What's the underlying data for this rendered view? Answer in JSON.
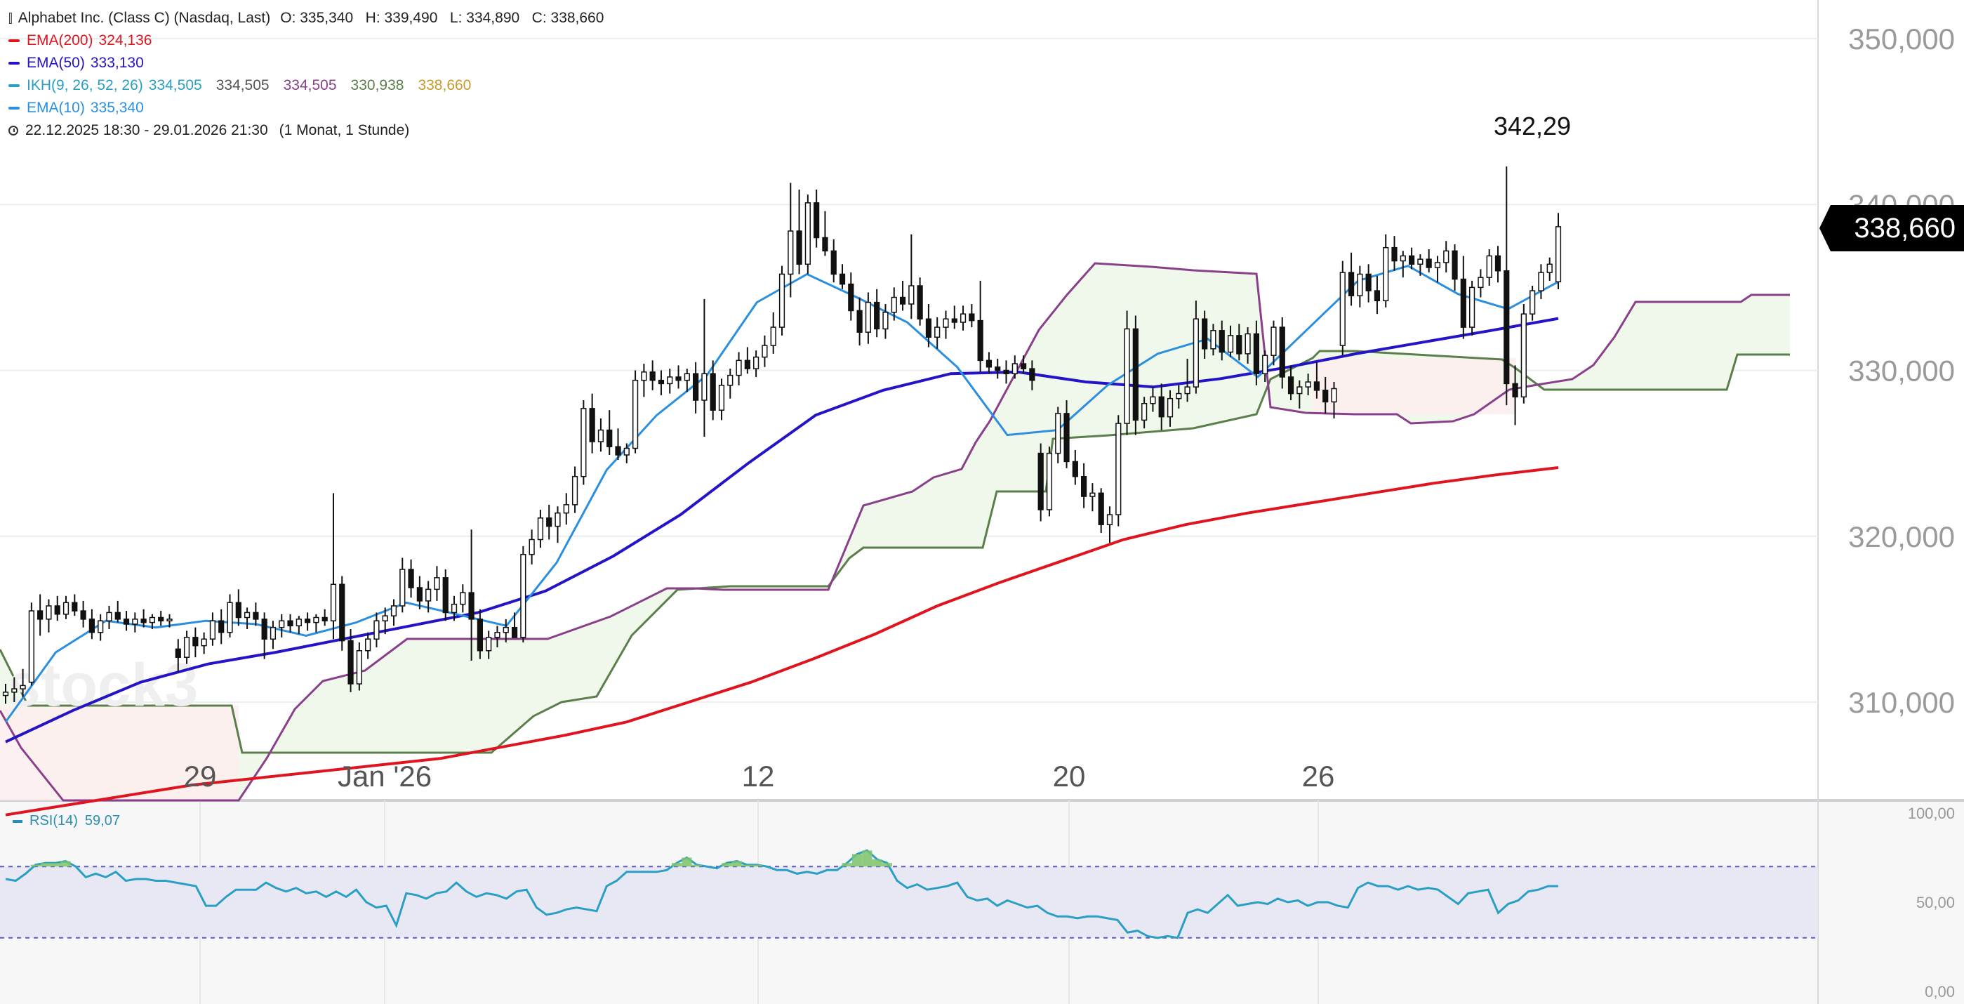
{
  "header": {
    "instrument": "Alphabet Inc. (Class C) (Nasdaq, Last)",
    "ohlc": "O: 335,340   H: 339,490   L: 334,890   C: 338,660",
    "ema200": {
      "label": "EMA(200)",
      "value": "324,136",
      "color": "#e0141e"
    },
    "ema50": {
      "label": "EMA(50)",
      "value": "333,130",
      "color": "#2414c8"
    },
    "ikh": {
      "label": "IKH(9, 26, 52, 26)",
      "v1": "334,505",
      "v2": "334,505",
      "v3": "334,505",
      "v4": "330,938",
      "v5": "338,660",
      "colors": [
        "#2a9fc4",
        "#555555",
        "#8a3f8a",
        "#5a7f4a",
        "#c89a2a"
      ]
    },
    "ema10": {
      "label": "EMA(10)",
      "value": "335,340",
      "color": "#2b8fe0"
    },
    "period": "22.12.2025 18:30 - 29.01.2026 21:30",
    "interval": "(1 Monat, 1 Stunde)"
  },
  "price_axis": {
    "ticks": [
      "350,000",
      "340,000",
      "330,000",
      "320,000",
      "310,000"
    ],
    "last_price": "338,660"
  },
  "date_axis": {
    "ticks": [
      "29",
      "Jan '26",
      "12",
      "20",
      "26"
    ]
  },
  "high_annotation": "342,29",
  "watermark": "stock3",
  "rsi": {
    "label": "RSI(14)",
    "value": "59,07",
    "ticks": [
      "100,00",
      "50,00",
      "0,00"
    ],
    "upper": 70,
    "lower": 30
  },
  "chart_data": {
    "type": "candlestick",
    "title": "Alphabet Inc. (Class C) (Nasdaq, Last)",
    "timeframe": "1 Stunde",
    "ylim": [
      303,
      352
    ],
    "last": 338.66,
    "high_marker": 342.29,
    "candles": [
      [
        310.4,
        311.1,
        309.9,
        310.6
      ],
      [
        310.6,
        311.5,
        310.0,
        310.8
      ],
      [
        310.8,
        312.0,
        310.3,
        311.0
      ],
      [
        311.2,
        316.0,
        311.0,
        315.5
      ],
      [
        315.5,
        316.5,
        314.0,
        315.0
      ],
      [
        315.0,
        316.2,
        314.2,
        315.8
      ],
      [
        315.8,
        316.4,
        314.9,
        315.3
      ],
      [
        315.3,
        316.4,
        315.0,
        316.0
      ],
      [
        316.0,
        316.5,
        315.2,
        315.5
      ],
      [
        315.5,
        316.1,
        314.5,
        315.0
      ],
      [
        315.0,
        315.6,
        313.8,
        314.2
      ],
      [
        314.2,
        315.3,
        313.7,
        314.9
      ],
      [
        314.9,
        315.8,
        314.4,
        315.4
      ],
      [
        315.4,
        316.1,
        314.8,
        315.0
      ],
      [
        315.0,
        315.5,
        314.3,
        314.7
      ],
      [
        314.7,
        315.4,
        314.2,
        315.0
      ],
      [
        315.0,
        315.6,
        314.5,
        314.8
      ],
      [
        314.8,
        315.3,
        314.4,
        315.1
      ],
      [
        315.1,
        315.5,
        314.6,
        314.9
      ],
      [
        314.9,
        315.3,
        314.5,
        315.0
      ],
      [
        313.2,
        313.8,
        311.8,
        312.7
      ],
      [
        312.7,
        314.3,
        312.3,
        313.9
      ],
      [
        313.9,
        314.5,
        312.7,
        313.4
      ],
      [
        313.4,
        314.2,
        312.9,
        313.8
      ],
      [
        313.8,
        315.4,
        313.4,
        314.9
      ],
      [
        314.9,
        315.6,
        313.5,
        314.2
      ],
      [
        314.2,
        316.5,
        313.9,
        316.0
      ],
      [
        316.0,
        316.8,
        314.6,
        315.1
      ],
      [
        315.1,
        315.7,
        314.4,
        315.4
      ],
      [
        315.4,
        316.0,
        314.6,
        315.0
      ],
      [
        315.0,
        315.4,
        312.6,
        313.8
      ],
      [
        313.8,
        314.9,
        313.2,
        314.5
      ],
      [
        314.5,
        315.3,
        313.9,
        314.9
      ],
      [
        314.9,
        315.3,
        314.2,
        314.6
      ],
      [
        314.6,
        315.2,
        314.1,
        315.0
      ],
      [
        315.0,
        315.4,
        314.3,
        314.8
      ],
      [
        314.8,
        315.3,
        314.2,
        315.1
      ],
      [
        315.1,
        315.6,
        314.6,
        314.9
      ],
      [
        314.9,
        322.6,
        313.8,
        317.1
      ],
      [
        317.1,
        317.6,
        313.1,
        313.7
      ],
      [
        313.7,
        314.4,
        310.6,
        311.1
      ],
      [
        311.1,
        313.6,
        310.7,
        313.1
      ],
      [
        313.1,
        314.2,
        312.6,
        313.8
      ],
      [
        313.8,
        315.4,
        313.3,
        314.9
      ],
      [
        314.9,
        315.7,
        314.1,
        315.2
      ],
      [
        315.2,
        316.2,
        314.6,
        315.8
      ],
      [
        315.8,
        318.7,
        315.4,
        318.0
      ],
      [
        318.0,
        318.6,
        316.3,
        316.9
      ],
      [
        316.9,
        317.6,
        315.6,
        316.1
      ],
      [
        316.1,
        317.3,
        315.4,
        316.8
      ],
      [
        316.8,
        318.2,
        316.1,
        317.5
      ],
      [
        317.5,
        318.0,
        314.9,
        315.4
      ],
      [
        315.4,
        316.4,
        314.9,
        315.9
      ],
      [
        315.9,
        317.1,
        315.4,
        316.6
      ],
      [
        316.6,
        320.4,
        312.5,
        315.0
      ],
      [
        315.0,
        315.6,
        312.6,
        313.1
      ],
      [
        313.1,
        314.3,
        312.6,
        313.9
      ],
      [
        313.9,
        314.6,
        313.3,
        314.2
      ],
      [
        314.2,
        315.0,
        313.6,
        314.5
      ],
      [
        314.5,
        315.4,
        313.9,
        313.9
      ],
      [
        313.9,
        319.4,
        313.6,
        318.9
      ],
      [
        318.9,
        320.4,
        318.3,
        319.8
      ],
      [
        319.8,
        321.6,
        319.3,
        321.1
      ],
      [
        321.1,
        321.9,
        319.8,
        320.6
      ],
      [
        320.6,
        321.8,
        319.6,
        321.4
      ],
      [
        321.4,
        322.6,
        320.7,
        321.9
      ],
      [
        321.9,
        324.2,
        321.4,
        323.6
      ],
      [
        323.6,
        328.2,
        323.1,
        327.7
      ],
      [
        327.7,
        328.6,
        325.0,
        325.7
      ],
      [
        325.7,
        327.1,
        325.1,
        326.4
      ],
      [
        326.4,
        327.6,
        324.9,
        325.4
      ],
      [
        325.4,
        326.5,
        324.6,
        324.9
      ],
      [
        324.9,
        325.6,
        324.4,
        325.3
      ],
      [
        325.3,
        330.0,
        325.0,
        329.4
      ],
      [
        329.4,
        330.4,
        328.4,
        329.9
      ],
      [
        329.9,
        330.6,
        328.8,
        329.4
      ],
      [
        329.4,
        330.0,
        328.5,
        329.2
      ],
      [
        329.2,
        330.1,
        328.6,
        329.6
      ],
      [
        329.6,
        330.3,
        328.9,
        329.4
      ],
      [
        329.4,
        330.1,
        328.7,
        329.8
      ],
      [
        329.8,
        330.5,
        327.4,
        328.2
      ],
      [
        328.2,
        334.3,
        326.0,
        329.8
      ],
      [
        329.8,
        330.6,
        327.0,
        327.6
      ],
      [
        327.6,
        329.5,
        327.0,
        329.1
      ],
      [
        329.1,
        330.1,
        328.3,
        329.7
      ],
      [
        329.7,
        331.1,
        329.1,
        330.6
      ],
      [
        330.6,
        331.4,
        329.8,
        330.1
      ],
      [
        330.1,
        331.2,
        329.6,
        330.8
      ],
      [
        330.8,
        332.1,
        330.2,
        331.5
      ],
      [
        331.5,
        333.5,
        331.0,
        332.6
      ],
      [
        332.6,
        336.3,
        332.1,
        335.8
      ],
      [
        335.8,
        341.3,
        334.4,
        338.4
      ],
      [
        338.4,
        340.9,
        335.8,
        336.4
      ],
      [
        336.4,
        340.6,
        335.8,
        340.1
      ],
      [
        340.1,
        340.9,
        337.4,
        338.0
      ],
      [
        338.0,
        339.6,
        336.9,
        337.2
      ],
      [
        337.2,
        337.9,
        335.3,
        335.8
      ],
      [
        335.8,
        336.4,
        334.9,
        335.2
      ],
      [
        335.2,
        335.9,
        333.0,
        333.6
      ],
      [
        333.6,
        334.4,
        331.5,
        332.3
      ],
      [
        332.3,
        334.7,
        331.6,
        334.1
      ],
      [
        334.1,
        334.9,
        332.0,
        332.5
      ],
      [
        332.5,
        334.0,
        331.9,
        333.5
      ],
      [
        333.5,
        335.0,
        333.0,
        334.4
      ],
      [
        334.4,
        335.4,
        333.6,
        334.0
      ],
      [
        334.0,
        338.2,
        333.1,
        335.1
      ],
      [
        335.1,
        335.6,
        332.7,
        333.1
      ],
      [
        333.1,
        334.0,
        331.4,
        332.0
      ],
      [
        332.0,
        333.2,
        331.3,
        332.6
      ],
      [
        332.6,
        333.6,
        331.9,
        333.1
      ],
      [
        333.1,
        333.9,
        332.5,
        332.9
      ],
      [
        332.9,
        333.9,
        332.4,
        333.4
      ],
      [
        333.4,
        334.0,
        332.6,
        333.0
      ],
      [
        333.0,
        335.4,
        329.9,
        330.6
      ],
      [
        330.6,
        331.1,
        329.8,
        330.2
      ],
      [
        330.2,
        330.7,
        329.5,
        330.0
      ],
      [
        330.0,
        330.6,
        329.2,
        329.8
      ],
      [
        329.8,
        330.9,
        329.5,
        330.4
      ],
      [
        330.4,
        330.9,
        329.8,
        330.1
      ],
      [
        330.1,
        330.6,
        328.8,
        329.4
      ],
      [
        325.0,
        325.6,
        320.9,
        321.6
      ],
      [
        321.6,
        325.4,
        321.2,
        325.0
      ],
      [
        325.0,
        327.8,
        324.4,
        327.4
      ],
      [
        327.4,
        328.2,
        324.1,
        324.5
      ],
      [
        324.5,
        325.2,
        323.1,
        323.6
      ],
      [
        323.6,
        324.4,
        321.7,
        322.4
      ],
      [
        322.4,
        323.2,
        321.5,
        322.6
      ],
      [
        322.6,
        322.9,
        320.2,
        320.7
      ],
      [
        320.7,
        321.8,
        319.6,
        321.3
      ],
      [
        321.3,
        327.3,
        320.6,
        326.8
      ],
      [
        326.8,
        333.6,
        326.1,
        332.5
      ],
      [
        332.5,
        333.3,
        326.1,
        327.0
      ],
      [
        327.0,
        328.4,
        326.5,
        328.0
      ],
      [
        328.0,
        329.0,
        327.5,
        328.4
      ],
      [
        328.4,
        329.2,
        326.4,
        327.2
      ],
      [
        327.2,
        328.8,
        326.6,
        328.3
      ],
      [
        328.3,
        329.1,
        327.7,
        328.6
      ],
      [
        328.6,
        330.7,
        328.1,
        329.0
      ],
      [
        329.0,
        334.2,
        328.6,
        333.1
      ],
      [
        333.1,
        333.6,
        330.7,
        331.3
      ],
      [
        331.3,
        332.8,
        330.9,
        332.4
      ],
      [
        332.4,
        333.0,
        330.6,
        331.1
      ],
      [
        331.1,
        332.7,
        330.8,
        332.1
      ],
      [
        332.1,
        332.8,
        330.6,
        331.0
      ],
      [
        331.0,
        332.6,
        330.4,
        332.2
      ],
      [
        332.2,
        333.0,
        329.1,
        329.8
      ],
      [
        329.8,
        331.2,
        329.3,
        330.9
      ],
      [
        330.9,
        333.0,
        330.3,
        332.6
      ],
      [
        332.6,
        333.2,
        328.9,
        329.6
      ],
      [
        329.6,
        330.3,
        328.2,
        328.6
      ],
      [
        328.6,
        329.4,
        327.7,
        329.0
      ],
      [
        329.0,
        329.8,
        328.5,
        329.3
      ],
      [
        329.3,
        330.5,
        328.3,
        328.8
      ],
      [
        328.8,
        329.6,
        327.4,
        328.1
      ],
      [
        328.1,
        329.3,
        327.1,
        328.9
      ],
      [
        331.5,
        336.6,
        330.9,
        335.9
      ],
      [
        335.9,
        337.1,
        333.9,
        334.5
      ],
      [
        334.5,
        336.3,
        333.8,
        335.8
      ],
      [
        335.8,
        336.4,
        334.1,
        334.8
      ],
      [
        334.8,
        335.7,
        333.4,
        334.2
      ],
      [
        334.2,
        338.2,
        333.8,
        337.4
      ],
      [
        337.4,
        338.1,
        336.0,
        336.6
      ],
      [
        336.6,
        337.2,
        335.6,
        336.9
      ],
      [
        336.9,
        337.4,
        336.1,
        336.4
      ],
      [
        336.4,
        337.0,
        335.7,
        336.7
      ],
      [
        336.7,
        337.3,
        335.9,
        336.2
      ],
      [
        336.2,
        336.9,
        335.3,
        336.5
      ],
      [
        336.5,
        337.8,
        335.9,
        337.2
      ],
      [
        337.2,
        337.6,
        334.8,
        335.5
      ],
      [
        335.5,
        336.9,
        331.9,
        332.6
      ],
      [
        332.6,
        335.4,
        332.1,
        335.0
      ],
      [
        335.0,
        336.1,
        334.4,
        335.6
      ],
      [
        335.6,
        337.3,
        335.1,
        336.9
      ],
      [
        336.9,
        337.5,
        335.3,
        336.0
      ],
      [
        336.0,
        342.29,
        327.9,
        329.2
      ],
      [
        329.2,
        330.3,
        326.7,
        328.4
      ],
      [
        328.4,
        334.0,
        328.0,
        333.4
      ],
      [
        333.4,
        335.1,
        333.0,
        334.8
      ],
      [
        334.8,
        336.4,
        334.3,
        335.9
      ],
      [
        335.9,
        336.8,
        335.4,
        336.4
      ],
      [
        335.34,
        339.49,
        334.89,
        338.66
      ]
    ],
    "series": [
      {
        "name": "EMA(200)",
        "values": [
          303.2,
          303.8,
          304.4,
          305.0,
          305.4,
          305.8,
          306.2,
          306.6,
          307.3,
          308.0,
          308.8,
          310.0,
          311.2,
          312.6,
          314.1,
          315.8,
          317.2,
          318.5,
          319.8,
          320.7,
          321.4,
          322.0,
          322.6,
          323.2,
          323.7,
          324.136
        ]
      },
      {
        "name": "EMA(50)",
        "values": [
          307.6,
          309.5,
          311.2,
          312.3,
          313.0,
          313.8,
          314.6,
          315.4,
          316.7,
          318.8,
          321.3,
          324.4,
          327.3,
          328.8,
          329.8,
          329.9,
          329.3,
          329.0,
          329.5,
          330.2,
          331.0,
          331.7,
          332.4,
          333.13
        ]
      },
      {
        "name": "EMA(10)",
        "values": [
          308.8,
          313.0,
          314.9,
          314.5,
          314.9,
          314.7,
          314.0,
          314.8,
          316.0,
          315.3,
          314.6,
          318.4,
          324.0,
          327.3,
          329.7,
          334.1,
          335.8,
          334.4,
          332.9,
          330.2,
          326.1,
          326.4,
          329.1,
          331.0,
          331.9,
          329.6,
          332.5,
          335.4,
          336.3,
          334.6,
          333.7,
          335.34
        ]
      }
    ],
    "rsi": {
      "name": "RSI(14)",
      "last": 59.07,
      "ylim": [
        0,
        100
      ],
      "bands": [
        30,
        70
      ]
    }
  }
}
